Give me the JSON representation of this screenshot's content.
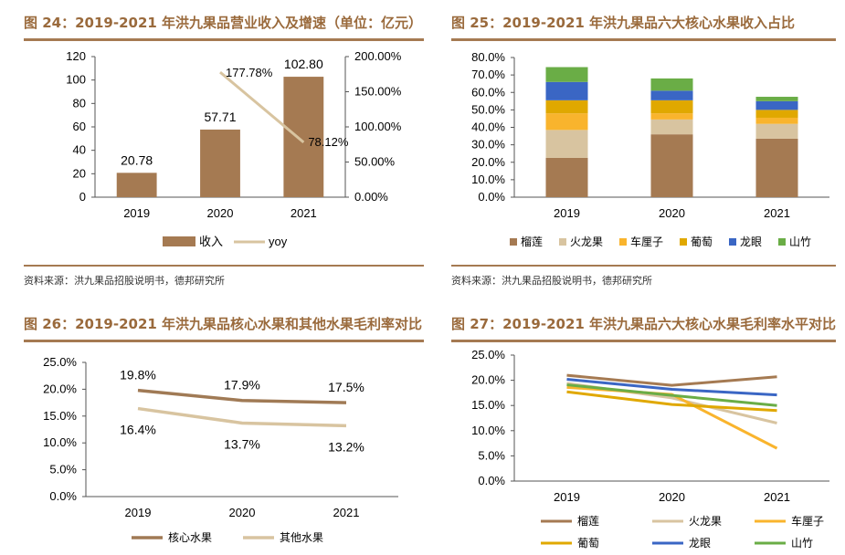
{
  "colors": {
    "title": "#9a6a3c",
    "rule": "#a57a52",
    "revenue_bar": "#a57a52",
    "yoy_line": "#d8c4a0",
    "core_fruit": "#a07a55",
    "other_fruit": "#d8c4a0",
    "durian": "#a57a52",
    "dragon_fruit": "#d8c4a0",
    "rose_apple": "#f9b42d",
    "grape": "#e0a800",
    "longan": "#3a66c4",
    "mangosteen": "#6aad46"
  },
  "panels": [
    {
      "title": "图 24：2019-2021 年洪九果品营业收入及增速（单位：亿元）",
      "source": "资料来源：洪九果品招股说明书，德邦研究所"
    },
    {
      "title": "图 25：2019-2021 年洪九果品六大核心水果收入占比",
      "source": "资料来源：洪九果品招股说明书，德邦研究所"
    },
    {
      "title": "图 26：2019-2021 年洪九果品核心水果和其他水果毛利率对比",
      "source": ""
    },
    {
      "title": "图 27：2019-2021 年洪九果品六大核心水果毛利率水平对比",
      "source": ""
    }
  ],
  "chart_data": [
    {
      "type": "bar",
      "title": "图 24：2019-2021 年洪九果品营业收入及增速（单位：亿元）",
      "categories": [
        "2019",
        "2020",
        "2021"
      ],
      "series": [
        {
          "name": "收入",
          "type": "bar",
          "axis": "left",
          "values": [
            20.78,
            57.71,
            102.8
          ],
          "labels": [
            "20.78",
            "57.71",
            "102.80"
          ]
        },
        {
          "name": "yoy",
          "type": "line",
          "axis": "right",
          "values": [
            null,
            177.78,
            78.12
          ],
          "labels": [
            "",
            "177.78%",
            "78.12%"
          ]
        }
      ],
      "ylim": [
        0,
        120
      ],
      "yticks": [
        "0",
        "20",
        "40",
        "60",
        "80",
        "100",
        "120"
      ],
      "y2lim": [
        0,
        200
      ],
      "y2ticks": [
        "0.00%",
        "50.00%",
        "100.00%",
        "150.00%",
        "200.00%"
      ],
      "grid": false,
      "legend_position": "bottom"
    },
    {
      "type": "bar",
      "stacked": true,
      "title": "图 25：2019-2021 年洪九果品六大核心水果收入占比",
      "categories": [
        "2019",
        "2020",
        "2021"
      ],
      "series": [
        {
          "name": "榴莲",
          "values": [
            22.5,
            36.0,
            33.5
          ]
        },
        {
          "name": "火龙果",
          "values": [
            16.0,
            8.5,
            8.5
          ]
        },
        {
          "name": "车厘子",
          "values": [
            9.5,
            3.5,
            3.5
          ]
        },
        {
          "name": "葡萄",
          "values": [
            7.5,
            7.5,
            4.5
          ]
        },
        {
          "name": "龙眼",
          "values": [
            10.5,
            5.5,
            5.0
          ]
        },
        {
          "name": "山竹",
          "values": [
            8.5,
            7.0,
            2.5
          ]
        }
      ],
      "ylim": [
        0,
        80
      ],
      "yticks": [
        "0.0%",
        "10.0%",
        "20.0%",
        "30.0%",
        "40.0%",
        "50.0%",
        "60.0%",
        "70.0%",
        "80.0%"
      ],
      "grid": false,
      "legend_position": "bottom"
    },
    {
      "type": "line",
      "title": "图 26：2019-2021 年洪九果品核心水果和其他水果毛利率对比",
      "categories": [
        "2019",
        "2020",
        "2021"
      ],
      "series": [
        {
          "name": "核心水果",
          "values": [
            19.8,
            17.9,
            17.5
          ],
          "labels": [
            "19.8%",
            "17.9%",
            "17.5%"
          ]
        },
        {
          "name": "其他水果",
          "values": [
            16.4,
            13.7,
            13.2
          ],
          "labels": [
            "16.4%",
            "13.7%",
            "13.2%"
          ]
        }
      ],
      "ylim": [
        0,
        25
      ],
      "yticks": [
        "0.0%",
        "5.0%",
        "10.0%",
        "15.0%",
        "20.0%",
        "25.0%"
      ],
      "grid": false,
      "legend_position": "bottom"
    },
    {
      "type": "line",
      "title": "图 27：2019-2021 年洪九果品六大核心水果毛利率水平对比",
      "categories": [
        "2019",
        "2020",
        "2021"
      ],
      "series": [
        {
          "name": "榴莲",
          "values": [
            21.0,
            19.0,
            20.7
          ]
        },
        {
          "name": "火龙果",
          "values": [
            19.4,
            16.5,
            11.5
          ]
        },
        {
          "name": "车厘子",
          "values": [
            18.6,
            17.2,
            6.5
          ]
        },
        {
          "name": "葡萄",
          "values": [
            17.7,
            15.2,
            14.0
          ]
        },
        {
          "name": "龙眼",
          "values": [
            20.2,
            18.2,
            17.1
          ]
        },
        {
          "name": "山竹",
          "values": [
            19.1,
            17.0,
            15.0
          ]
        }
      ],
      "ylim": [
        0,
        25
      ],
      "yticks": [
        "0.0%",
        "5.0%",
        "10.0%",
        "15.0%",
        "20.0%",
        "25.0%"
      ],
      "grid": false,
      "legend_position": "bottom"
    }
  ]
}
